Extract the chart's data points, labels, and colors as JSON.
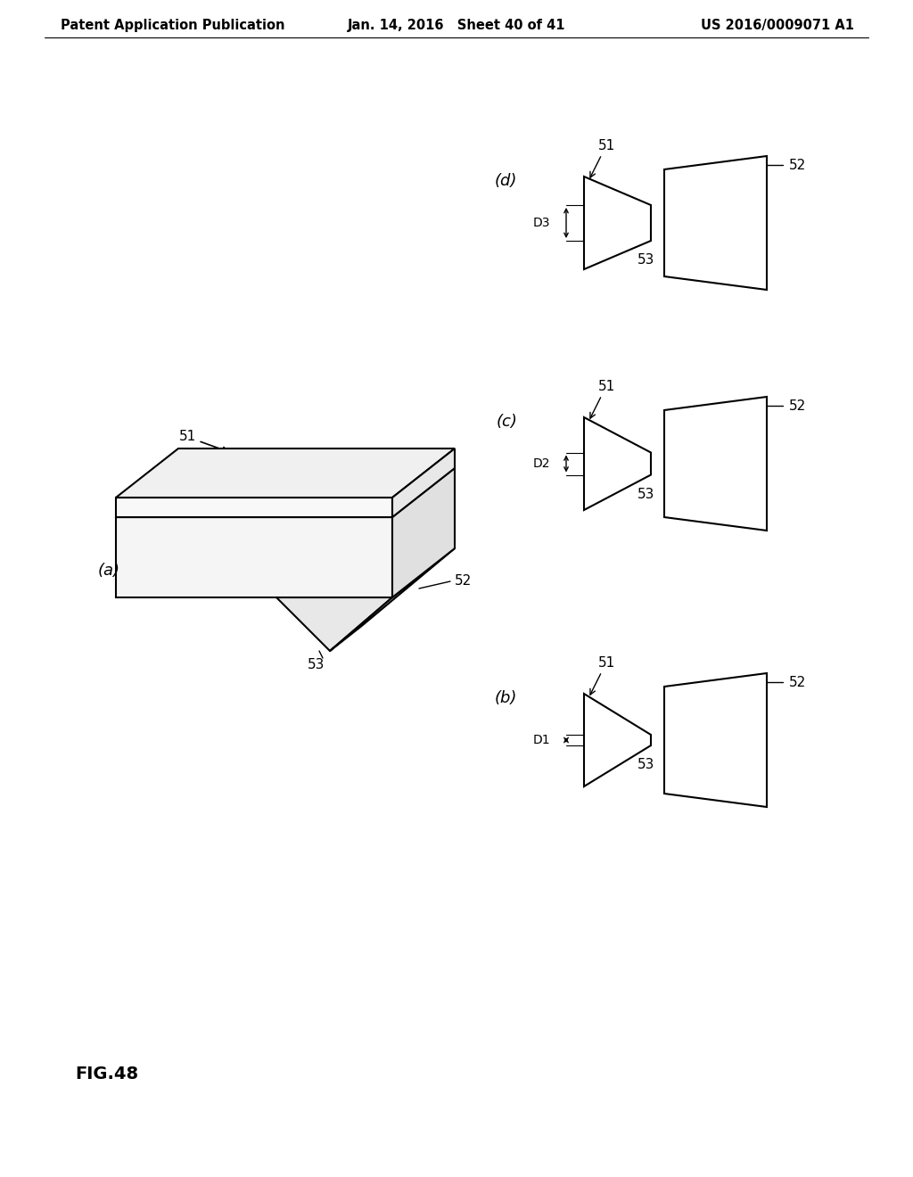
{
  "bg_color": "#ffffff",
  "header_left": "Patent Application Publication",
  "header_center": "Jan. 14, 2016   Sheet 40 of 41",
  "header_right": "US 2016/0009071 A1",
  "header_fontsize": 10.5,
  "fig_label": "FIG.48",
  "fig_label_fontsize": 14,
  "lc": "#000000",
  "fc_white": "#ffffff",
  "fc_light": "#f0f0f0",
  "fc_mid": "#e0e0e0",
  "fc_dark": "#cccccc"
}
